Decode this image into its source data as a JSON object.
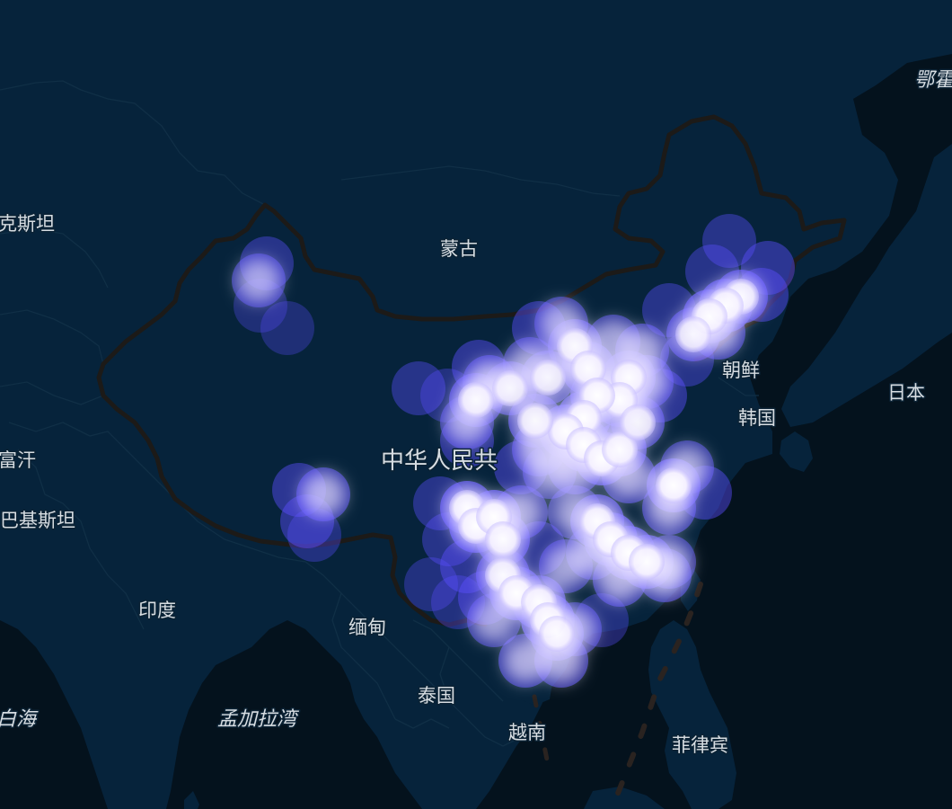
{
  "map": {
    "colors": {
      "land": "#06233b",
      "sea": "#04121d",
      "border": "#102f46",
      "china_border": "#1c1a18",
      "dashed_line": "#2a2320",
      "point_fill": "#4a40ff",
      "point_core": "#ffffff",
      "label": "#d7dde2"
    },
    "labels": {
      "kazakhstan": "克斯坦",
      "mongolia": "蒙古",
      "north_korea": "朝鲜",
      "south_korea": "韩国",
      "japan": "日本",
      "china": "中华人民共",
      "afghanistan": "富汗",
      "pakistan": "巴基斯坦",
      "india": "印度",
      "myanmar": "缅甸",
      "thailand": "泰国",
      "vietnam": "越南",
      "philippines": "菲律宾",
      "bay_of_bengal": "孟加拉湾",
      "arabian_sea": "白海",
      "okhotsk": "鄂霍"
    }
  }
}
